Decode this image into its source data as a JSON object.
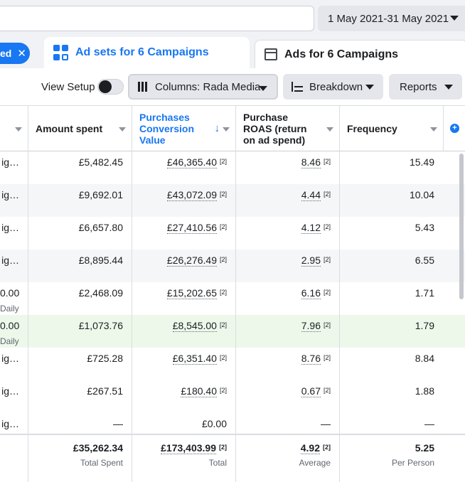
{
  "header": {
    "date_range": "1 May 2021-31 May 2021"
  },
  "tabs": {
    "selected_pill_label": "ed",
    "close_glyph": "✕",
    "adsets_label": "Ad sets for 6 Campaigns",
    "ads_label": "Ads for 6 Campaigns",
    "active_color": "#1877f2"
  },
  "toolbar": {
    "view_setup_label": "View Setup",
    "columns_label": "Columns: Rada Media",
    "breakdown_label": "Breakdown",
    "reports_label": "Reports"
  },
  "table": {
    "columns": [
      {
        "label": ""
      },
      {
        "label": "Amount spent"
      },
      {
        "label": "Purchases Conversion Value",
        "sorted": true,
        "sort_direction": "descending"
      },
      {
        "label": "Purchase ROAS (return on ad spend)"
      },
      {
        "label": "Frequency"
      }
    ],
    "rows": [
      {
        "name": "ig…",
        "name_sub": "",
        "amount_spent": "£5,482.45",
        "conversion_value": "£46,365.40",
        "cv_note": "[2]",
        "roas": "8.46",
        "roas_note": "[2]",
        "frequency": "15.49"
      },
      {
        "name": "ig…",
        "name_sub": "",
        "amount_spent": "£9,692.01",
        "conversion_value": "£43,072.09",
        "cv_note": "[2]",
        "roas": "4.44",
        "roas_note": "[2]",
        "frequency": "10.04"
      },
      {
        "name": "ig…",
        "name_sub": "",
        "amount_spent": "£6,657.80",
        "conversion_value": "£27,410.56",
        "cv_note": "[2]",
        "roas": "4.12",
        "roas_note": "[2]",
        "frequency": "5.43"
      },
      {
        "name": "ig…",
        "name_sub": "",
        "amount_spent": "£8,895.44",
        "conversion_value": "£26,276.49",
        "cv_note": "[2]",
        "roas": "2.95",
        "roas_note": "[2]",
        "frequency": "6.55"
      },
      {
        "name": "0.00",
        "name_sub": "Daily",
        "amount_spent": "£2,468.09",
        "conversion_value": "£15,202.65",
        "cv_note": "[2]",
        "roas": "6.16",
        "roas_note": "[2]",
        "frequency": "1.71"
      },
      {
        "name": "0.00",
        "name_sub": "Daily",
        "amount_spent": "£1,073.76",
        "conversion_value": "£8,545.00",
        "cv_note": "[2]",
        "roas": "7.96",
        "roas_note": "[2]",
        "frequency": "1.79"
      },
      {
        "name": "ig…",
        "name_sub": "",
        "amount_spent": "£725.28",
        "conversion_value": "£6,351.40",
        "cv_note": "[2]",
        "roas": "8.76",
        "roas_note": "[2]",
        "frequency": "8.84"
      },
      {
        "name": "ig…",
        "name_sub": "",
        "amount_spent": "£267.51",
        "conversion_value": "£180.40",
        "cv_note": "[2]",
        "roas": "0.67",
        "roas_note": "[2]",
        "frequency": "1.88"
      },
      {
        "name": "ig…",
        "name_sub": "",
        "amount_spent": "—",
        "conversion_value": "£0.00",
        "cv_note": "",
        "roas": "—",
        "roas_note": "",
        "frequency": "—"
      }
    ],
    "totals": {
      "amount_spent": "£35,262.34",
      "amount_spent_label": "Total Spent",
      "conversion_value": "£173,403.99",
      "cv_note": "[2]",
      "conversion_value_label": "Total",
      "roas": "4.92",
      "roas_note": "[2]",
      "roas_label": "Average",
      "frequency": "5.25",
      "frequency_label": "Per Person"
    }
  }
}
